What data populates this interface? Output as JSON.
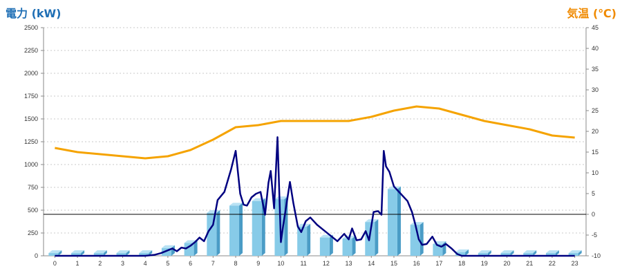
{
  "chart_data": {
    "type": "bar+line",
    "y_left_label": "電力 (kW)",
    "y_right_label": "気温 (℃)",
    "y_left_range": [
      0,
      2500
    ],
    "y_left_ticks": [
      0,
      250,
      500,
      750,
      1000,
      1250,
      1500,
      1750,
      2000,
      2250,
      2500
    ],
    "y_right_range": [
      -10,
      45
    ],
    "y_right_ticks": [
      -10,
      -5,
      0,
      5,
      10,
      15,
      20,
      25,
      30,
      35,
      40,
      45
    ],
    "x_ticks": [
      "0",
      "1",
      "2",
      "3",
      "4",
      "5",
      "6",
      "7",
      "8",
      "9",
      "10",
      "11",
      "12",
      "13",
      "14",
      "15",
      "16",
      "17",
      "18",
      "19",
      "20",
      "21",
      "22",
      "23"
    ],
    "grid": "horizontal dashed",
    "colors": {
      "bars": "#87cbe8",
      "bar_side": "#4a9cc6",
      "bar_top": "#b9e2f4",
      "power_line": "#000080",
      "temperature_line": "#f5a300",
      "zero_line": "#000000"
    },
    "bars_kw": [
      30,
      30,
      30,
      30,
      30,
      85,
      140,
      470,
      550,
      600,
      620,
      320,
      200,
      190,
      370,
      730,
      340,
      130,
      40,
      30,
      30,
      30,
      30,
      30
    ],
    "temperature_c": [
      16,
      15,
      14.5,
      14,
      13.5,
      14,
      15.5,
      18,
      21,
      21.5,
      22.5,
      22.5,
      22.5,
      22.5,
      23.5,
      25,
      26,
      25.5,
      24,
      22.5,
      21.5,
      20.5,
      19,
      18.5
    ],
    "power_kw_series": {
      "x": [
        0,
        1,
        2,
        3,
        4,
        4.4,
        4.7,
        5,
        5.2,
        5.4,
        5.6,
        5.8,
        6,
        6.2,
        6.4,
        6.6,
        6.8,
        7,
        7.2,
        7.5,
        7.8,
        8,
        8.2,
        8.35,
        8.5,
        8.7,
        8.9,
        9.1,
        9.3,
        9.45,
        9.55,
        9.7,
        9.85,
        10,
        10.1,
        10.25,
        10.4,
        10.55,
        10.75,
        10.9,
        11.1,
        11.3,
        11.6,
        11.9,
        12.2,
        12.5,
        12.8,
        13,
        13.15,
        13.35,
        13.55,
        13.75,
        13.9,
        14.1,
        14.3,
        14.45,
        14.55,
        14.65,
        14.8,
        15,
        15.3,
        15.6,
        15.8,
        15.95,
        16.1,
        16.25,
        16.45,
        16.7,
        16.9,
        17.1,
        17.3,
        17.55,
        17.8,
        18,
        19,
        20,
        21,
        22,
        23
      ],
      "y": [
        0,
        0,
        0,
        0,
        0,
        10,
        30,
        60,
        80,
        50,
        90,
        80,
        110,
        150,
        200,
        160,
        270,
        340,
        610,
        700,
        950,
        1150,
        680,
        560,
        550,
        640,
        680,
        700,
        450,
        800,
        930,
        520,
        1300,
        150,
        330,
        570,
        810,
        580,
        320,
        260,
        380,
        420,
        340,
        280,
        220,
        160,
        240,
        180,
        300,
        170,
        180,
        270,
        170,
        480,
        490,
        450,
        1150,
        980,
        920,
        760,
        680,
        600,
        480,
        340,
        180,
        120,
        130,
        210,
        120,
        100,
        130,
        80,
        20,
        0,
        0,
        0,
        0,
        0,
        0
      ]
    }
  }
}
